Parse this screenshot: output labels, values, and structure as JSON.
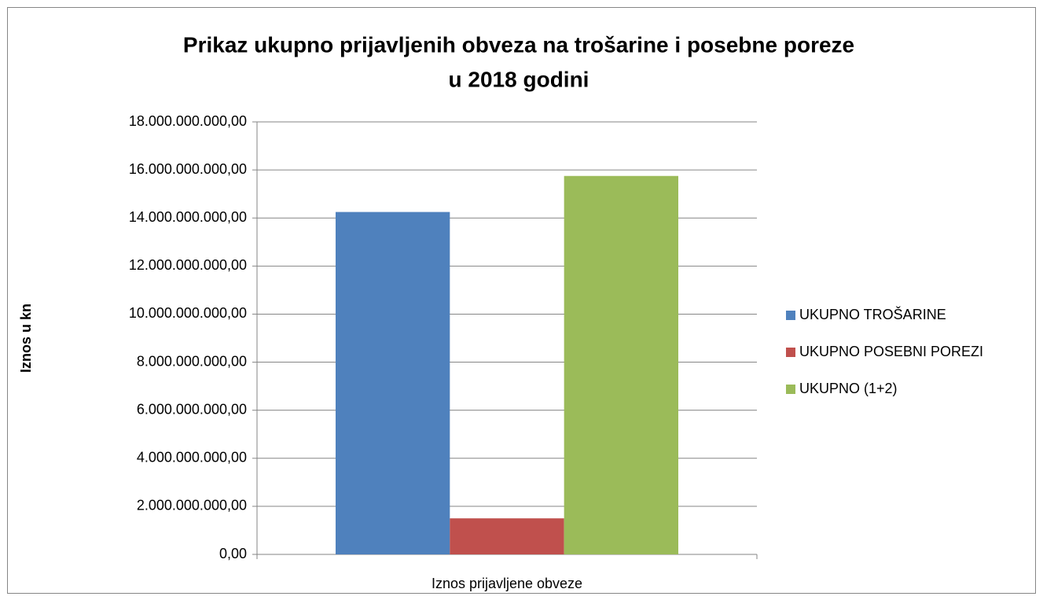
{
  "chart_data": {
    "type": "bar",
    "title": [
      "Prikaz ukupno prijavljenih obveza na trošarine i posebne poreze",
      "u 2018  godini"
    ],
    "y_label": "Iznos u kn",
    "categories": [
      "Iznos prijavljene obveze"
    ],
    "series": [
      {
        "name": "UKUPNO TROŠARINE",
        "color": "#4f81bd",
        "values": [
          14250000000
        ]
      },
      {
        "name": "UKUPNO POSEBNI POREZI",
        "color": "#c0504d",
        "values": [
          1500000000
        ]
      },
      {
        "name": "UKUPNO (1+2)",
        "color": "#9bbb59",
        "values": [
          15750000000
        ]
      }
    ],
    "ylim": [
      0,
      18000000000
    ],
    "yticks": [
      {
        "value": 0,
        "label": "0,00"
      },
      {
        "value": 2000000000,
        "label": "2.000.000.000,00"
      },
      {
        "value": 4000000000,
        "label": "4.000.000.000,00"
      },
      {
        "value": 6000000000,
        "label": "6.000.000.000,00"
      },
      {
        "value": 8000000000,
        "label": "8.000.000.000,00"
      },
      {
        "value": 10000000000,
        "label": "10.000.000.000,00"
      },
      {
        "value": 12000000000,
        "label": "12.000.000.000,00"
      },
      {
        "value": 14000000000,
        "label": "14.000.000.000,00"
      },
      {
        "value": 16000000000,
        "label": "16.000.000.000,00"
      },
      {
        "value": 18000000000,
        "label": "18.000.000.000,00"
      }
    ],
    "grid": true,
    "legend": "right"
  }
}
